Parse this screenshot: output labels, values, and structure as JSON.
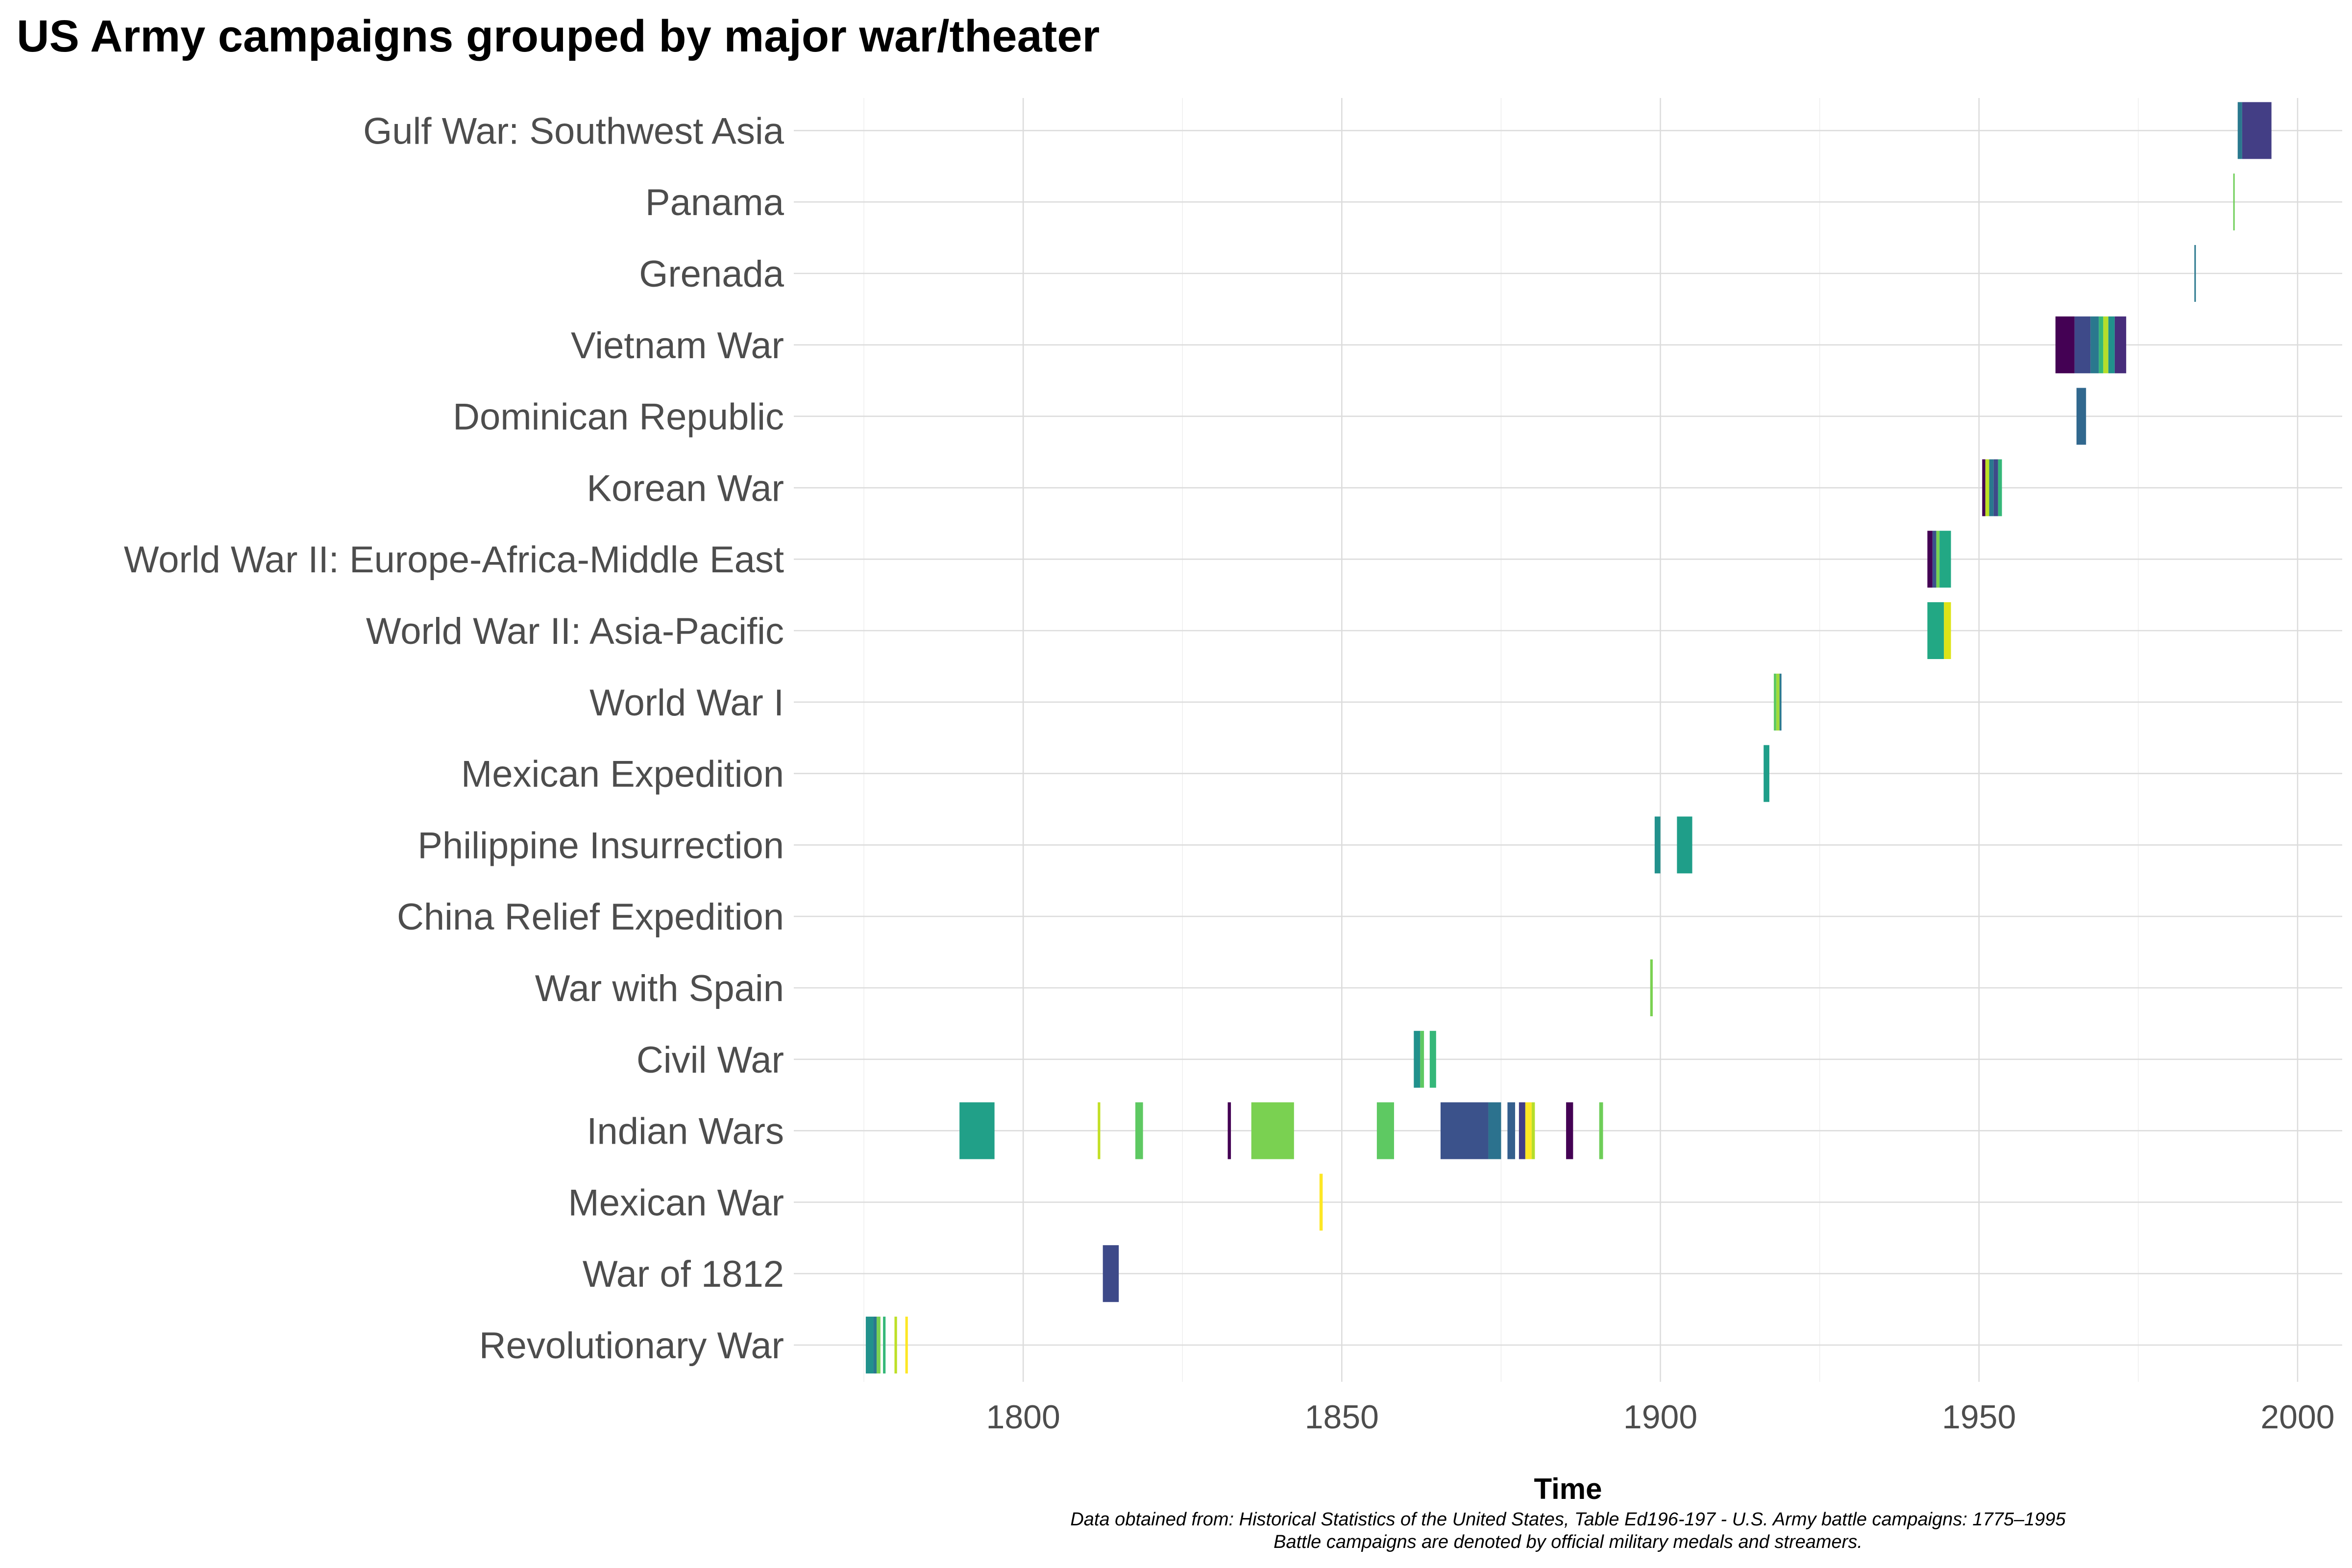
{
  "chart_data": {
    "type": "timeline",
    "title": "US Army campaigns grouped by major war/theater",
    "xlabel": "Time",
    "ylabel": "",
    "xlim": [
      1764,
      2007
    ],
    "x_ticks": [
      1800,
      1850,
      1900,
      1950,
      2000
    ],
    "x_tick_labels": [
      "1800",
      "1850",
      "1900",
      "1950",
      "2000"
    ],
    "grid": true,
    "legend": "none",
    "caption": [
      "Data obtained from: Historical Statistics of the United States, Table Ed196-197 - U.S. Army battle campaigns: 1775–1995",
      "Battle campaigns are denoted by official military medals and streamers."
    ],
    "categories": [
      "Revolutionary War",
      "War of 1812",
      "Mexican War",
      "Indian Wars",
      "Civil War",
      "War with Spain",
      "China Relief Expedition",
      "Philippine Insurrection",
      "Mexican Expedition",
      "World War I",
      "World War II: Asia-Pacific",
      "World War II: Europe-Africa-Middle East",
      "Korean War",
      "Dominican Republic",
      "Vietnam War",
      "Grenada",
      "Panama",
      "Gulf War: Southwest Asia"
    ],
    "segments": [
      {
        "category": "Revolutionary War",
        "start": 1775.3,
        "end": 1776.5,
        "color": "#21918c"
      },
      {
        "category": "Revolutionary War",
        "start": 1776.5,
        "end": 1777.0,
        "color": "#2a788e"
      },
      {
        "category": "Revolutionary War",
        "start": 1777.0,
        "end": 1777.6,
        "color": "#7ad151"
      },
      {
        "category": "Revolutionary War",
        "start": 1778.0,
        "end": 1778.4,
        "color": "#35b779"
      },
      {
        "category": "Revolutionary War",
        "start": 1779.8,
        "end": 1780.2,
        "color": "#bddf26"
      },
      {
        "category": "Revolutionary War",
        "start": 1781.5,
        "end": 1781.9,
        "color": "#fde725"
      },
      {
        "category": "War of 1812",
        "start": 1812.5,
        "end": 1815.0,
        "color": "#3e4a89"
      },
      {
        "category": "Mexican War",
        "start": 1846.5,
        "end": 1847.0,
        "color": "#fde725"
      },
      {
        "category": "Indian Wars",
        "start": 1790.0,
        "end": 1795.5,
        "color": "#21a088"
      },
      {
        "category": "Indian Wars",
        "start": 1811.7,
        "end": 1812.1,
        "color": "#c2df23"
      },
      {
        "category": "Indian Wars",
        "start": 1817.6,
        "end": 1818.8,
        "color": "#5ec962"
      },
      {
        "category": "Indian Wars",
        "start": 1832.1,
        "end": 1832.6,
        "color": "#440154"
      },
      {
        "category": "Indian Wars",
        "start": 1835.8,
        "end": 1842.5,
        "color": "#7ad151"
      },
      {
        "category": "Indian Wars",
        "start": 1855.5,
        "end": 1858.2,
        "color": "#5ec962"
      },
      {
        "category": "Indian Wars",
        "start": 1865.5,
        "end": 1873.0,
        "color": "#3b528b"
      },
      {
        "category": "Indian Wars",
        "start": 1873.0,
        "end": 1875.0,
        "color": "#2c728e"
      },
      {
        "category": "Indian Wars",
        "start": 1876.0,
        "end": 1877.2,
        "color": "#355f8d"
      },
      {
        "category": "Indian Wars",
        "start": 1877.8,
        "end": 1878.8,
        "color": "#433e85"
      },
      {
        "category": "Indian Wars",
        "start": 1878.8,
        "end": 1879.8,
        "color": "#fde725"
      },
      {
        "category": "Indian Wars",
        "start": 1879.8,
        "end": 1880.3,
        "color": "#b5de2b"
      },
      {
        "category": "Indian Wars",
        "start": 1885.2,
        "end": 1886.3,
        "color": "#440154"
      },
      {
        "category": "Indian Wars",
        "start": 1890.4,
        "end": 1891.0,
        "color": "#6ece58"
      },
      {
        "category": "Civil War",
        "start": 1861.3,
        "end": 1862.3,
        "color": "#21918c"
      },
      {
        "category": "Civil War",
        "start": 1862.3,
        "end": 1862.9,
        "color": "#5ec962"
      },
      {
        "category": "Civil War",
        "start": 1863.8,
        "end": 1864.8,
        "color": "#35b779"
      },
      {
        "category": "War with Spain",
        "start": 1898.4,
        "end": 1898.8,
        "color": "#7ad151"
      },
      {
        "category": "Philippine Insurrection",
        "start": 1899.1,
        "end": 1900.0,
        "color": "#21918c"
      },
      {
        "category": "Philippine Insurrection",
        "start": 1902.6,
        "end": 1905.0,
        "color": "#1f9e89"
      },
      {
        "category": "Mexican Expedition",
        "start": 1916.2,
        "end": 1917.1,
        "color": "#1f9e89"
      },
      {
        "category": "World War I",
        "start": 1917.8,
        "end": 1918.2,
        "color": "#5ec962"
      },
      {
        "category": "World War I",
        "start": 1918.2,
        "end": 1918.7,
        "color": "#a0da39"
      },
      {
        "category": "World War I",
        "start": 1918.7,
        "end": 1919.0,
        "color": "#2a788e"
      },
      {
        "category": "World War II: Asia-Pacific",
        "start": 1941.9,
        "end": 1944.5,
        "color": "#22a884"
      },
      {
        "category": "World War II: Asia-Pacific",
        "start": 1944.5,
        "end": 1945.6,
        "color": "#dde318"
      },
      {
        "category": "World War II: Europe-Africa-Middle East",
        "start": 1941.9,
        "end": 1942.7,
        "color": "#440154"
      },
      {
        "category": "World War II: Europe-Africa-Middle East",
        "start": 1942.7,
        "end": 1943.3,
        "color": "#3b528b"
      },
      {
        "category": "World War II: Europe-Africa-Middle East",
        "start": 1943.3,
        "end": 1943.8,
        "color": "#7ad151"
      },
      {
        "category": "World War II: Europe-Africa-Middle East",
        "start": 1943.8,
        "end": 1945.6,
        "color": "#22a884"
      },
      {
        "category": "Korean War",
        "start": 1950.5,
        "end": 1951.0,
        "color": "#440154"
      },
      {
        "category": "Korean War",
        "start": 1951.0,
        "end": 1951.6,
        "color": "#bddf26"
      },
      {
        "category": "Korean War",
        "start": 1951.6,
        "end": 1952.3,
        "color": "#2a788e"
      },
      {
        "category": "Korean War",
        "start": 1952.3,
        "end": 1953.0,
        "color": "#3e4a89"
      },
      {
        "category": "Korean War",
        "start": 1953.0,
        "end": 1953.6,
        "color": "#35b779"
      },
      {
        "category": "Dominican Republic",
        "start": 1965.3,
        "end": 1966.8,
        "color": "#31688e"
      },
      {
        "category": "Vietnam War",
        "start": 1962.0,
        "end": 1965.0,
        "color": "#440154"
      },
      {
        "category": "Vietnam War",
        "start": 1965.0,
        "end": 1967.5,
        "color": "#3e4a89"
      },
      {
        "category": "Vietnam War",
        "start": 1967.5,
        "end": 1968.8,
        "color": "#2a788e"
      },
      {
        "category": "Vietnam War",
        "start": 1968.8,
        "end": 1969.5,
        "color": "#35b779"
      },
      {
        "category": "Vietnam War",
        "start": 1969.5,
        "end": 1970.3,
        "color": "#b5de2b"
      },
      {
        "category": "Vietnam War",
        "start": 1970.3,
        "end": 1971.3,
        "color": "#21918c"
      },
      {
        "category": "Vietnam War",
        "start": 1971.3,
        "end": 1973.1,
        "color": "#472d7b"
      },
      {
        "category": "Grenada",
        "start": 1983.8,
        "end": 1984.0,
        "color": "#2a788e"
      },
      {
        "category": "Panama",
        "start": 1989.9,
        "end": 1990.1,
        "color": "#6ece58"
      },
      {
        "category": "Gulf War: Southwest Asia",
        "start": 1990.6,
        "end": 1991.3,
        "color": "#2a788e"
      },
      {
        "category": "Gulf War: Southwest Asia",
        "start": 1991.3,
        "end": 1995.9,
        "color": "#433e85"
      }
    ]
  }
}
